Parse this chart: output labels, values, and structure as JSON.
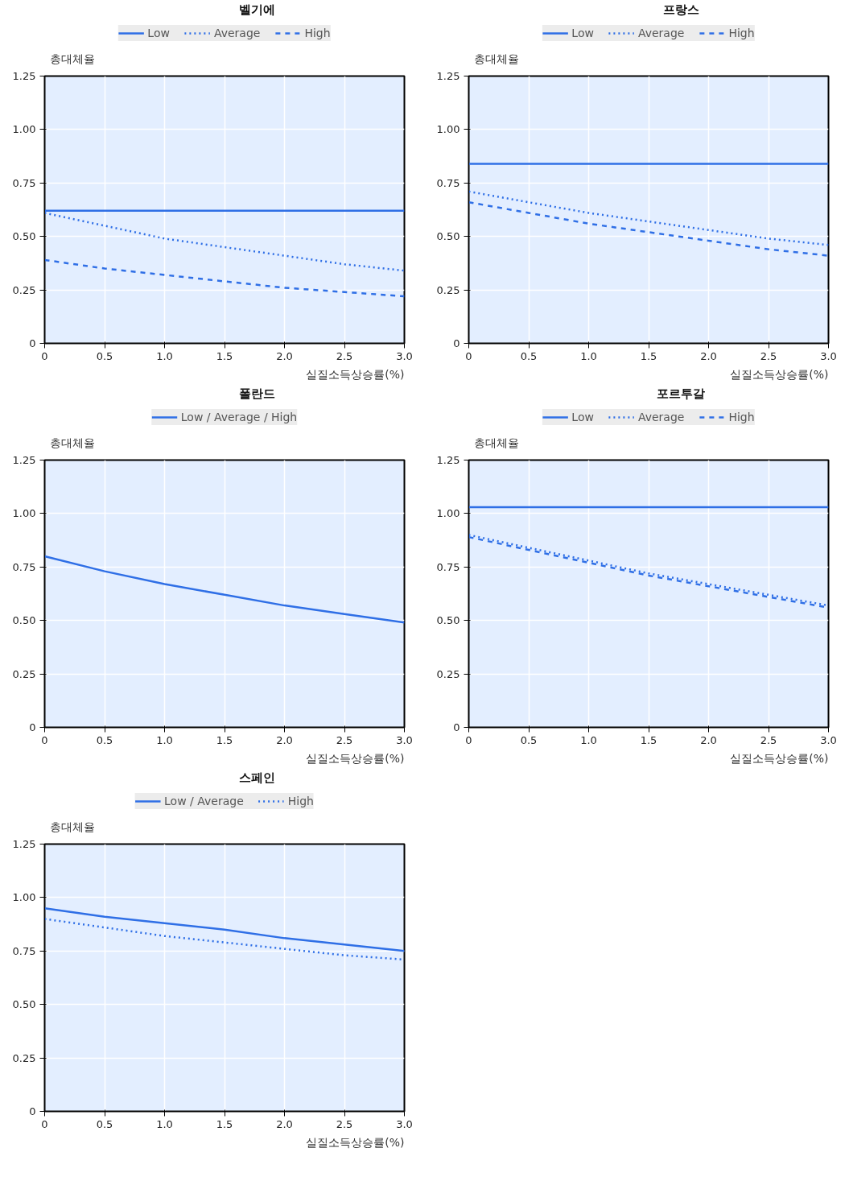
{
  "chart_data": [
    {
      "type": "line",
      "title": "벨기에",
      "xlabel": "실질소득상승률(%)",
      "ylabel": "총대체율",
      "x": [
        0,
        0.5,
        1,
        1.5,
        2,
        2.5,
        3
      ],
      "xlim": [
        0,
        3
      ],
      "ylim": [
        0,
        1.25
      ],
      "xticks": [
        0,
        0.5,
        {
          "value": 1,
          "label": "1.0"
        },
        1.5,
        {
          "value": 2,
          "label": "2.0"
        },
        2.5,
        {
          "value": 3,
          "label": "3.0"
        }
      ],
      "yticks": [
        0,
        0.25,
        {
          "value": 0.5,
          "label": "0.50"
        },
        {
          "value": 0.75,
          "label": "0.75"
        },
        {
          "value": 1,
          "label": "1.00"
        },
        1.25
      ],
      "grid": true,
      "legend": "top",
      "series": [
        {
          "name": "Low",
          "color": "#2f6fe6",
          "line_style": "solid",
          "values": [
            0.62,
            0.62,
            0.62,
            0.62,
            0.62,
            0.62,
            0.62
          ]
        },
        {
          "name": "Average",
          "color": "#2f6fe6",
          "line_style": "dotted",
          "values": [
            0.61,
            0.55,
            0.49,
            0.45,
            0.41,
            0.37,
            0.34
          ]
        },
        {
          "name": "High",
          "color": "#2f6fe6",
          "line_style": "dashed",
          "values": [
            0.39,
            0.35,
            0.32,
            0.29,
            0.26,
            0.24,
            0.22
          ]
        }
      ]
    },
    {
      "type": "line",
      "title": "프랑스",
      "xlabel": "실질소득상승률(%)",
      "ylabel": "총대체율",
      "x": [
        0,
        0.5,
        1,
        1.5,
        2,
        2.5,
        3
      ],
      "xlim": [
        0,
        3
      ],
      "ylim": [
        0,
        1.25
      ],
      "xticks": [
        0,
        0.5,
        {
          "value": 1,
          "label": "1.0"
        },
        1.5,
        {
          "value": 2,
          "label": "2.0"
        },
        2.5,
        {
          "value": 3,
          "label": "3.0"
        }
      ],
      "yticks": [
        0,
        0.25,
        {
          "value": 0.5,
          "label": "0.50"
        },
        {
          "value": 0.75,
          "label": "0.75"
        },
        {
          "value": 1,
          "label": "1.00"
        },
        1.25
      ],
      "grid": true,
      "legend": "top",
      "series": [
        {
          "name": "Low",
          "color": "#2f6fe6",
          "line_style": "solid",
          "values": [
            0.84,
            0.84,
            0.84,
            0.84,
            0.84,
            0.84,
            0.84
          ]
        },
        {
          "name": "Average",
          "color": "#2f6fe6",
          "line_style": "dotted",
          "values": [
            0.71,
            0.66,
            0.61,
            0.57,
            0.53,
            0.49,
            0.46
          ]
        },
        {
          "name": "High",
          "color": "#2f6fe6",
          "line_style": "dashed",
          "values": [
            0.66,
            0.61,
            0.56,
            0.52,
            0.48,
            0.44,
            0.41
          ]
        }
      ]
    },
    {
      "type": "line",
      "title": "폴란드",
      "xlabel": "실질소득상승률(%)",
      "ylabel": "총대체율",
      "x": [
        0,
        0.5,
        1,
        1.5,
        2,
        2.5,
        3
      ],
      "xlim": [
        0,
        3
      ],
      "ylim": [
        0,
        1.25
      ],
      "xticks": [
        0,
        0.5,
        {
          "value": 1,
          "label": "1.0"
        },
        1.5,
        {
          "value": 2,
          "label": "2.0"
        },
        2.5,
        {
          "value": 3,
          "label": "3.0"
        }
      ],
      "yticks": [
        0,
        0.25,
        {
          "value": 0.5,
          "label": "0.50"
        },
        {
          "value": 0.75,
          "label": "0.75"
        },
        {
          "value": 1,
          "label": "1.00"
        },
        1.25
      ],
      "grid": true,
      "legend": "top",
      "series": [
        {
          "name": "Low / Average / High",
          "color": "#2f6fe6",
          "line_style": "solid",
          "values": [
            0.8,
            0.73,
            0.67,
            0.62,
            0.57,
            0.53,
            0.49
          ]
        }
      ]
    },
    {
      "type": "line",
      "title": "포르투갈",
      "xlabel": "실질소득상승률(%)",
      "ylabel": "총대체율",
      "x": [
        0,
        0.5,
        1,
        1.5,
        2,
        2.5,
        3
      ],
      "xlim": [
        0,
        3
      ],
      "ylim": [
        0,
        1.25
      ],
      "xticks": [
        0,
        0.5,
        {
          "value": 1,
          "label": "1.0"
        },
        1.5,
        {
          "value": 2,
          "label": "2.0"
        },
        2.5,
        {
          "value": 3,
          "label": "3.0"
        }
      ],
      "yticks": [
        0,
        0.25,
        {
          "value": 0.5,
          "label": "0.50"
        },
        {
          "value": 0.75,
          "label": "0.75"
        },
        {
          "value": 1,
          "label": "1.00"
        },
        1.25
      ],
      "grid": true,
      "legend": "top",
      "series": [
        {
          "name": "Low",
          "color": "#2f6fe6",
          "line_style": "solid",
          "values": [
            1.03,
            1.03,
            1.03,
            1.03,
            1.03,
            1.03,
            1.03
          ]
        },
        {
          "name": "Average",
          "color": "#2f6fe6",
          "line_style": "dotted",
          "values": [
            0.9,
            0.84,
            0.78,
            0.72,
            0.67,
            0.62,
            0.57
          ]
        },
        {
          "name": "High",
          "color": "#2f6fe6",
          "line_style": "dashed",
          "values": [
            0.89,
            0.83,
            0.77,
            0.71,
            0.66,
            0.61,
            0.56
          ]
        }
      ]
    },
    {
      "type": "line",
      "title": "스페인",
      "xlabel": "실질소득상승률(%)",
      "ylabel": "총대체율",
      "x": [
        0,
        0.5,
        1,
        1.5,
        2,
        2.5,
        3
      ],
      "xlim": [
        0,
        3
      ],
      "ylim": [
        0,
        1.25
      ],
      "xticks": [
        0,
        0.5,
        {
          "value": 1,
          "label": "1.0"
        },
        1.5,
        {
          "value": 2,
          "label": "2.0"
        },
        2.5,
        {
          "value": 3,
          "label": "3.0"
        }
      ],
      "yticks": [
        0,
        0.25,
        {
          "value": 0.5,
          "label": "0.50"
        },
        {
          "value": 0.75,
          "label": "0.75"
        },
        {
          "value": 1,
          "label": "1.00"
        },
        1.25
      ],
      "grid": true,
      "legend": "top",
      "series": [
        {
          "name": "Low / Average",
          "color": "#2f6fe6",
          "line_style": "solid",
          "values": [
            0.95,
            0.91,
            0.88,
            0.85,
            0.81,
            0.78,
            0.75
          ]
        },
        {
          "name": "High",
          "color": "#2f6fe6",
          "line_style": "dotted",
          "values": [
            0.9,
            0.86,
            0.82,
            0.79,
            0.76,
            0.73,
            0.71
          ]
        }
      ]
    }
  ]
}
